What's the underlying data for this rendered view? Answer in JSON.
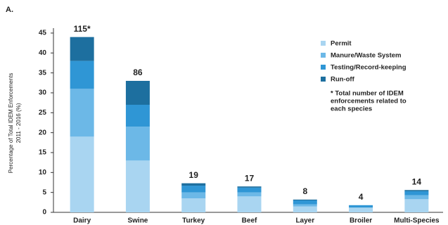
{
  "chart_data": {
    "type": "stacked-bar",
    "panel_label": "A.",
    "ylabel_lines": [
      "Percentage of Total IDEM Enforcements",
      "2011 - 2016 (%)"
    ],
    "categories": [
      "Dairy",
      "Swine",
      "Turkey",
      "Beef",
      "Layer",
      "Broiler",
      "Multi-Species"
    ],
    "series": [
      {
        "name": "Permit",
        "color": "#a9d5f1",
        "values": [
          19,
          13,
          3.5,
          4,
          1.5,
          1.2,
          3.3
        ]
      },
      {
        "name": "Manure/Waste System",
        "color": "#6cb8e7",
        "values": [
          12,
          8.5,
          1.5,
          1,
          0.5,
          0,
          1
        ]
      },
      {
        "name": "Testing/Record-keeping",
        "color": "#2f96d5",
        "values": [
          7,
          5.5,
          1.7,
          1.2,
          1,
          0.6,
          1
        ]
      },
      {
        "name": "Run-off",
        "color": "#1d6f9f",
        "values": [
          6,
          6,
          0.6,
          0.3,
          0.2,
          0,
          0.3
        ]
      }
    ],
    "count_labels": [
      "115*",
      "86",
      "19",
      "17",
      "8",
      "4",
      "14"
    ],
    "note_lines": [
      "* Total number of IDEM",
      "enforcements related to",
      "each species"
    ],
    "ylim": [
      0,
      45
    ],
    "yticks": [
      0,
      5,
      10,
      15,
      20,
      25,
      30,
      35,
      40,
      45
    ]
  }
}
